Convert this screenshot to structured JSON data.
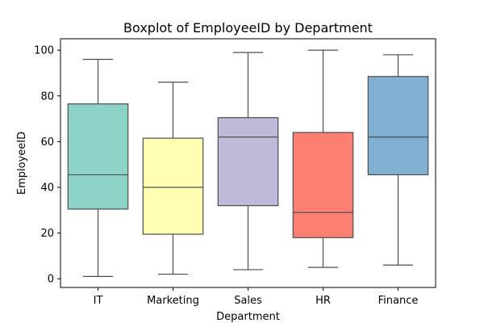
{
  "chart_data": {
    "type": "boxplot",
    "title": "Boxplot of EmployeeID by Department",
    "xlabel": "Department",
    "ylabel": "EmployeeID",
    "ylim": [
      -3.8,
      105
    ],
    "yticks": [
      0,
      20,
      40,
      60,
      80,
      100
    ],
    "grid": false,
    "categories": [
      "IT",
      "Marketing",
      "Sales",
      "HR",
      "Finance"
    ],
    "boxes": [
      {
        "category": "IT",
        "whisker_low": 1,
        "q1": 30.5,
        "median": 45.5,
        "q3": 76.5,
        "whisker_high": 96,
        "color": "#8dd3c7"
      },
      {
        "category": "Marketing",
        "whisker_low": 2,
        "q1": 19.5,
        "median": 40,
        "q3": 61.5,
        "whisker_high": 86,
        "color": "#ffffb3"
      },
      {
        "category": "Sales",
        "whisker_low": 4,
        "q1": 32,
        "median": 62,
        "q3": 70.5,
        "whisker_high": 99,
        "color": "#bebada"
      },
      {
        "category": "HR",
        "whisker_low": 5,
        "q1": 18,
        "median": 29,
        "q3": 64,
        "whisker_high": 100,
        "color": "#fb8072"
      },
      {
        "category": "Finance",
        "whisker_low": 6,
        "q1": 45.5,
        "median": 62,
        "q3": 88.5,
        "whisker_high": 98,
        "color": "#80b1d3"
      }
    ],
    "line_color": "#4d4d4d"
  }
}
